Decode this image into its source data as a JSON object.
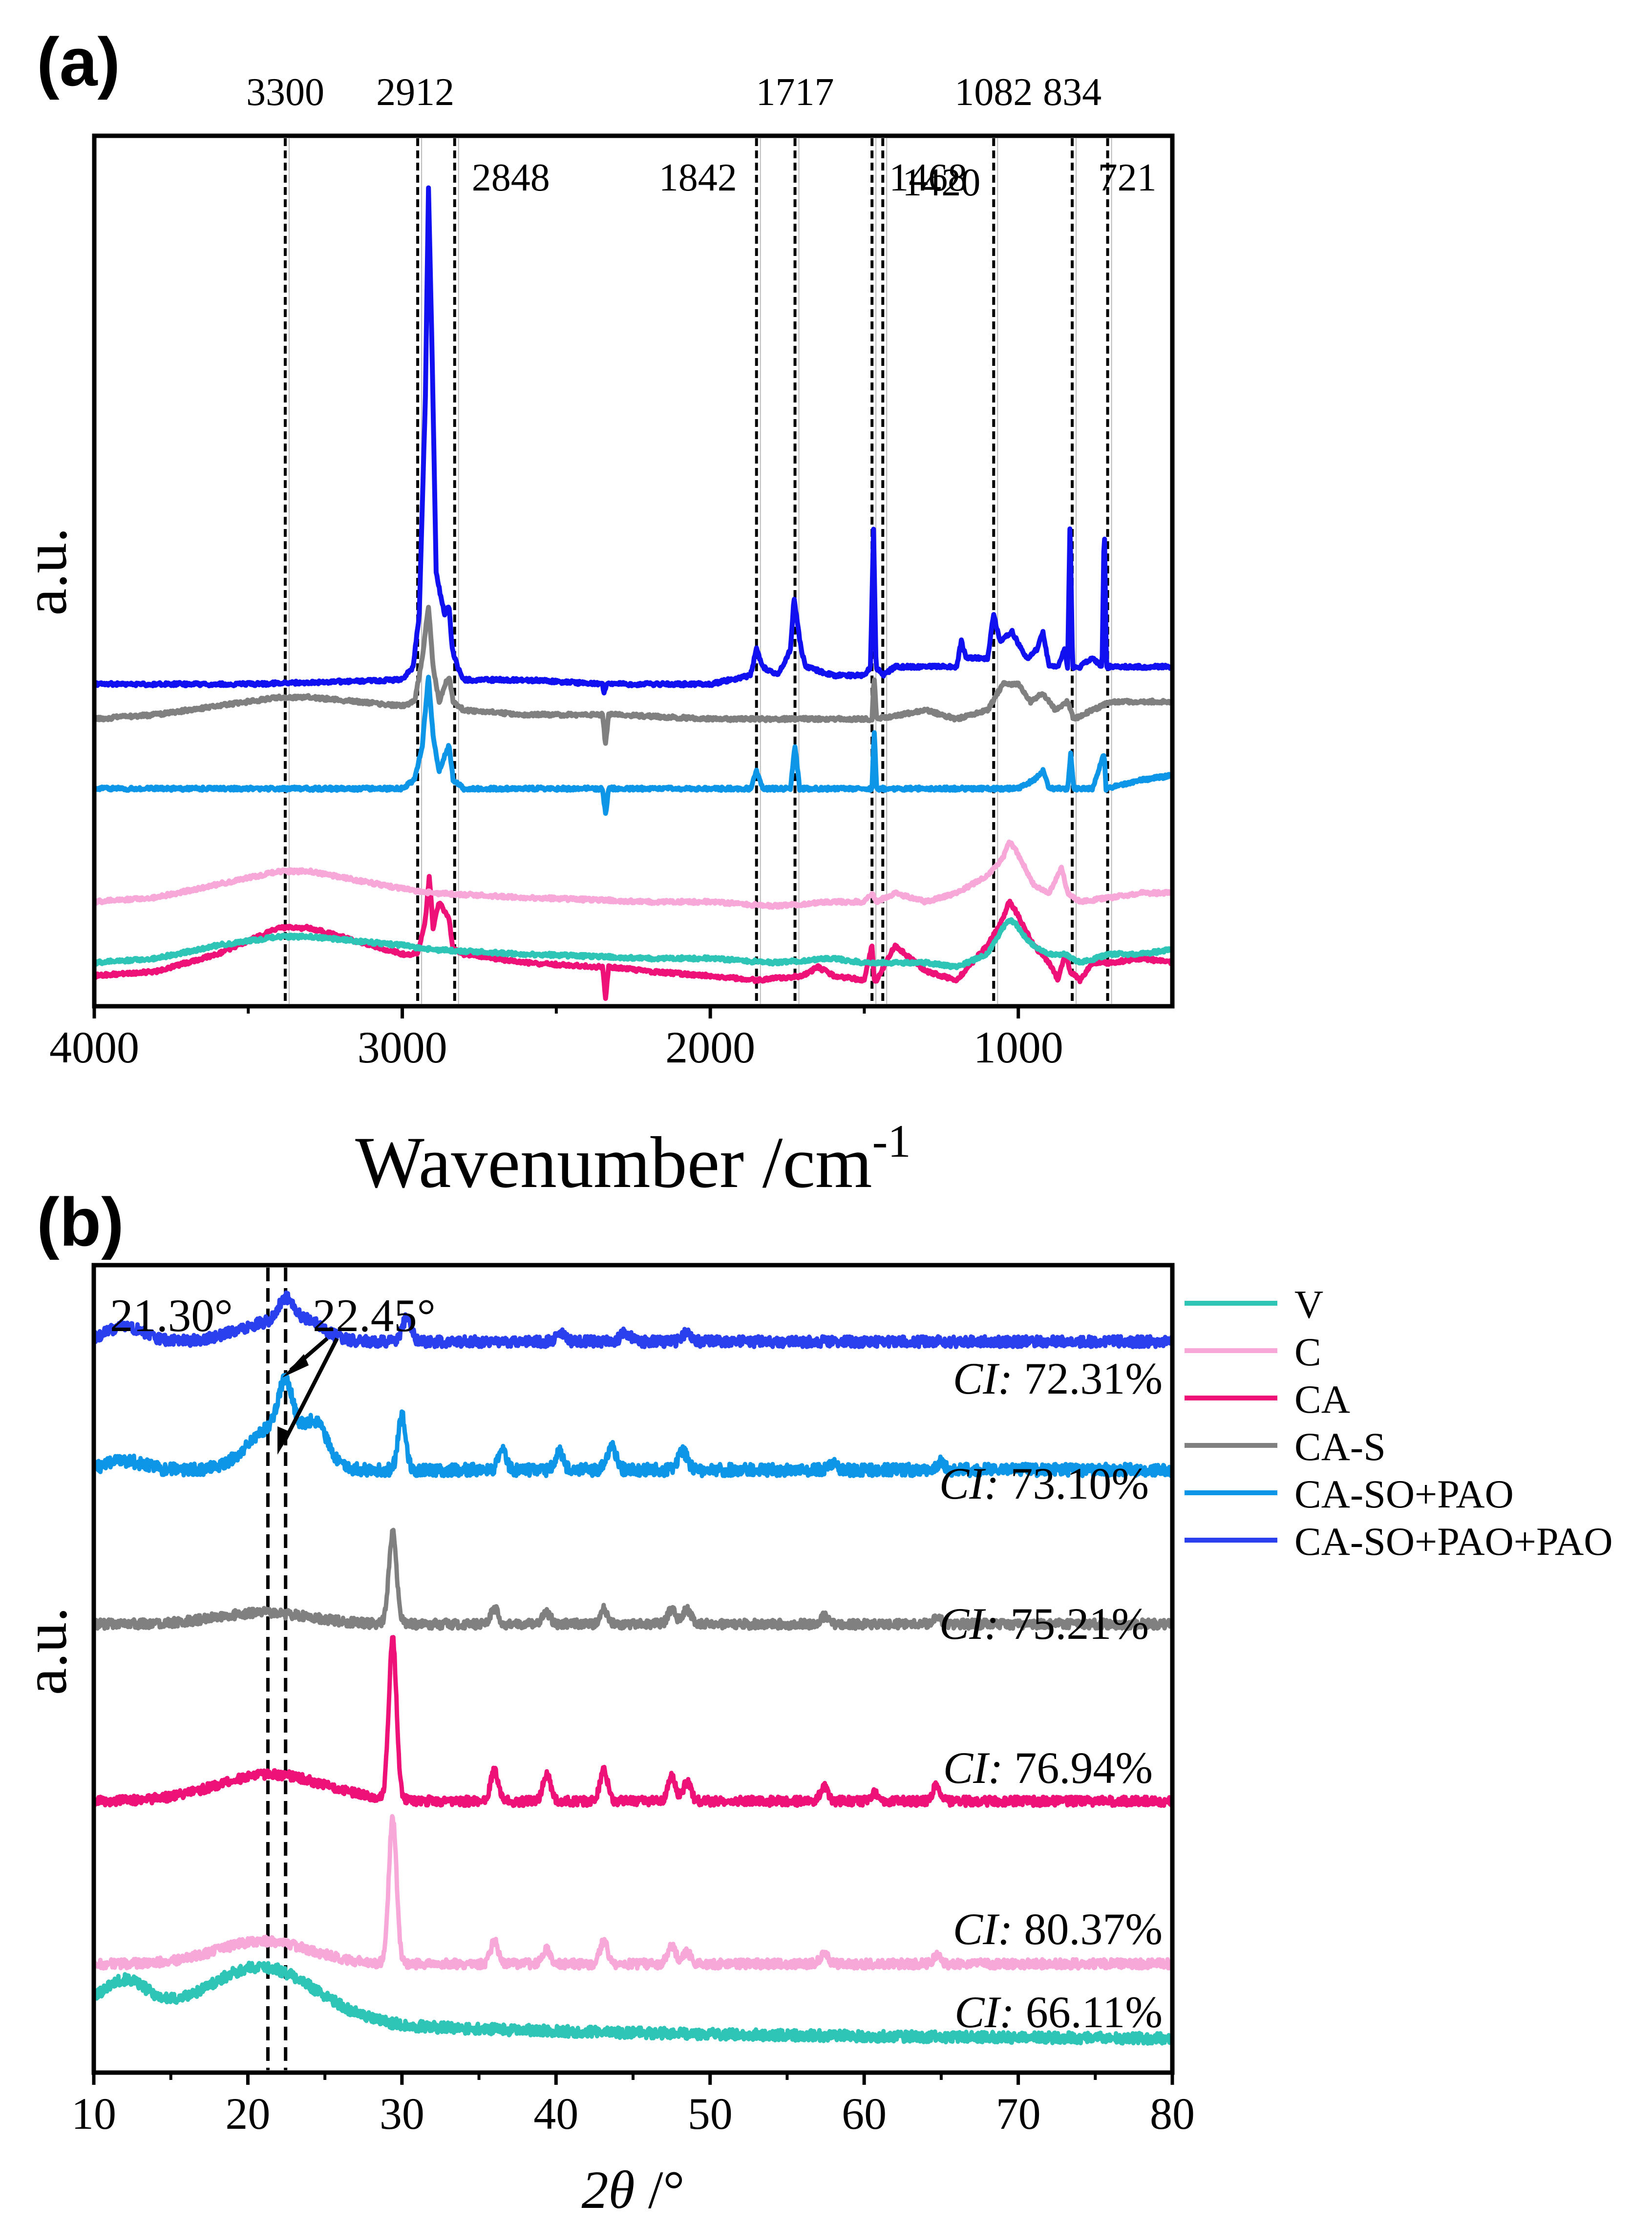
{
  "chart_data": [
    {
      "panel_label": "(a)",
      "type": "line",
      "xlabel": "Wavenumber /cm",
      "xlabel_sup": "-1",
      "ylabel": "a.u.",
      "xlim": [
        4000,
        500
      ],
      "xticks": [
        4000,
        3000,
        2000,
        1000
      ],
      "xtick_labels": [
        "4000",
        "3000",
        "2000",
        "1000"
      ],
      "ylim": [
        0,
        1
      ],
      "grid": false,
      "peak_lines": [
        {
          "x": 3380,
          "label": "3300",
          "row": "top"
        },
        {
          "x": 2950,
          "label": "2912",
          "row": "top"
        },
        {
          "x": 2830,
          "label": "2848",
          "row": "second"
        },
        {
          "x": 1850,
          "label": "1842",
          "row": "second"
        },
        {
          "x": 1725,
          "label": "1717",
          "row": "top"
        },
        {
          "x": 1475,
          "label": "1468",
          "row": "second"
        },
        {
          "x": 1440,
          "label": "1420",
          "row": "third"
        },
        {
          "x": 1080,
          "label": "1082",
          "row": "top"
        },
        {
          "x": 825,
          "label": "834",
          "row": "top"
        },
        {
          "x": 710,
          "label": "721",
          "row": "second"
        }
      ],
      "series": [
        {
          "name": "CA",
          "color": "#EE1177",
          "baseline": 0.035,
          "x": [
            4000,
            3800,
            3600,
            3400,
            3300,
            3150,
            3000,
            2950,
            2925,
            2912,
            2900,
            2880,
            2848,
            2835,
            2800,
            2600,
            2350,
            2340,
            2330,
            2320,
            2200,
            2000,
            1850,
            1700,
            1650,
            1600,
            1500,
            1475,
            1468,
            1460,
            1400,
            1300,
            1200,
            1100,
            1050,
            1030,
            1010,
            980,
            950,
            900,
            870,
            850,
            830,
            800,
            760,
            700,
            600,
            500
          ],
          "y": [
            0.035,
            0.04,
            0.06,
            0.09,
            0.09,
            0.075,
            0.06,
            0.06,
            0.1,
            0.15,
            0.09,
            0.12,
            0.1,
            0.065,
            0.06,
            0.05,
            0.045,
            0.01,
            0.045,
            0.045,
            0.04,
            0.035,
            0.03,
            0.035,
            0.045,
            0.035,
            0.03,
            0.07,
            0.03,
            0.03,
            0.07,
            0.04,
            0.03,
            0.07,
            0.1,
            0.12,
            0.11,
            0.09,
            0.07,
            0.05,
            0.03,
            0.06,
            0.04,
            0.03,
            0.05,
            0.05,
            0.055,
            0.05
          ]
        },
        {
          "name": "V",
          "color": "#2EC4B6",
          "baseline": 0.05,
          "x": [
            4000,
            3800,
            3600,
            3400,
            3300,
            3150,
            3000,
            2900,
            2600,
            2200,
            2000,
            1800,
            1600,
            1500,
            1400,
            1300,
            1200,
            1100,
            1050,
            1030,
            1010,
            980,
            950,
            900,
            850,
            800,
            700,
            600,
            500
          ],
          "y": [
            0.05,
            0.055,
            0.07,
            0.08,
            0.08,
            0.075,
            0.07,
            0.065,
            0.06,
            0.055,
            0.055,
            0.05,
            0.055,
            0.05,
            0.05,
            0.05,
            0.045,
            0.06,
            0.09,
            0.1,
            0.095,
            0.08,
            0.07,
            0.06,
            0.06,
            0.05,
            0.06,
            0.06,
            0.065
          ]
        },
        {
          "name": "C",
          "color": "#F7A8D8",
          "baseline": 0.12,
          "x": [
            4000,
            3800,
            3600,
            3400,
            3300,
            3150,
            3000,
            2900,
            2600,
            2200,
            2000,
            1800,
            1600,
            1500,
            1475,
            1460,
            1400,
            1300,
            1200,
            1100,
            1050,
            1030,
            1010,
            980,
            950,
            900,
            860,
            840,
            800,
            700,
            600,
            500
          ],
          "y": [
            0.12,
            0.125,
            0.14,
            0.155,
            0.155,
            0.145,
            0.135,
            0.13,
            0.125,
            0.12,
            0.12,
            0.115,
            0.12,
            0.12,
            0.13,
            0.12,
            0.13,
            0.12,
            0.13,
            0.15,
            0.17,
            0.19,
            0.18,
            0.16,
            0.14,
            0.13,
            0.16,
            0.13,
            0.12,
            0.125,
            0.13,
            0.13
          ]
        },
        {
          "name": "CA-SO+PAO",
          "color": "#0D96E8",
          "baseline": 0.25,
          "x": [
            4000,
            3500,
            3000,
            2960,
            2935,
            2915,
            2900,
            2880,
            2860,
            2848,
            2835,
            2800,
            2600,
            2350,
            2340,
            2330,
            2320,
            2000,
            1870,
            1850,
            1830,
            1740,
            1725,
            1710,
            1500,
            1475,
            1468,
            1460,
            1300,
            1100,
            1000,
            950,
            920,
            900,
            840,
            830,
            820,
            760,
            721,
            715,
            600,
            500
          ],
          "y": [
            0.25,
            0.25,
            0.25,
            0.26,
            0.3,
            0.38,
            0.31,
            0.27,
            0.29,
            0.3,
            0.26,
            0.25,
            0.25,
            0.25,
            0.22,
            0.25,
            0.25,
            0.25,
            0.25,
            0.27,
            0.25,
            0.25,
            0.3,
            0.25,
            0.25,
            0.25,
            0.32,
            0.25,
            0.25,
            0.25,
            0.25,
            0.26,
            0.27,
            0.25,
            0.25,
            0.29,
            0.25,
            0.25,
            0.29,
            0.25,
            0.26,
            0.265
          ]
        },
        {
          "name": "CA-S",
          "color": "#808080",
          "baseline": 0.33,
          "x": [
            4000,
            3800,
            3600,
            3400,
            3300,
            3150,
            3000,
            2960,
            2935,
            2915,
            2900,
            2880,
            2860,
            2848,
            2835,
            2800,
            2600,
            2350,
            2340,
            2330,
            2320,
            2000,
            1800,
            1600,
            1475,
            1468,
            1460,
            1300,
            1200,
            1100,
            1050,
            1000,
            960,
            920,
            880,
            840,
            820,
            760,
            700,
            600,
            500
          ],
          "y": [
            0.33,
            0.335,
            0.345,
            0.355,
            0.355,
            0.35,
            0.345,
            0.35,
            0.4,
            0.46,
            0.39,
            0.35,
            0.37,
            0.38,
            0.35,
            0.34,
            0.335,
            0.335,
            0.3,
            0.335,
            0.335,
            0.33,
            0.33,
            0.33,
            0.33,
            0.38,
            0.33,
            0.34,
            0.33,
            0.34,
            0.37,
            0.37,
            0.35,
            0.36,
            0.34,
            0.35,
            0.33,
            0.34,
            0.35,
            0.35,
            0.35
          ]
        },
        {
          "name": "CA-SO+PAO+PAO",
          "color": "#1010F0",
          "baseline": 0.37,
          "x": [
            4000,
            3500,
            3000,
            2965,
            2945,
            2925,
            2915,
            2905,
            2890,
            2875,
            2862,
            2848,
            2838,
            2820,
            2800,
            2600,
            2350,
            2345,
            2335,
            2200,
            2000,
            1870,
            1850,
            1830,
            1780,
            1740,
            1728,
            1717,
            1705,
            1690,
            1600,
            1500,
            1480,
            1470,
            1462,
            1440,
            1400,
            1350,
            1300,
            1200,
            1185,
            1170,
            1150,
            1100,
            1080,
            1060,
            1020,
            990,
            970,
            940,
            920,
            900,
            870,
            850,
            840,
            832,
            824,
            800,
            760,
            728,
            721,
            714,
            690,
            650,
            600,
            550,
            500
          ],
          "y": [
            0.37,
            0.37,
            0.375,
            0.39,
            0.45,
            0.7,
            0.94,
            0.78,
            0.5,
            0.47,
            0.45,
            0.46,
            0.41,
            0.39,
            0.375,
            0.375,
            0.37,
            0.36,
            0.37,
            0.37,
            0.37,
            0.38,
            0.41,
            0.39,
            0.38,
            0.41,
            0.47,
            0.44,
            0.41,
            0.39,
            0.38,
            0.38,
            0.39,
            0.55,
            0.39,
            0.38,
            0.39,
            0.39,
            0.39,
            0.39,
            0.42,
            0.4,
            0.4,
            0.4,
            0.45,
            0.42,
            0.43,
            0.41,
            0.4,
            0.41,
            0.43,
            0.39,
            0.39,
            0.41,
            0.39,
            0.56,
            0.39,
            0.39,
            0.4,
            0.39,
            0.56,
            0.39,
            0.39,
            0.39,
            0.39,
            0.39,
            0.39
          ]
        }
      ]
    },
    {
      "panel_label": "(b)",
      "type": "line",
      "xlabel_italic": "2θ",
      "xlabel_rest": " /°",
      "ylabel": "a.u.",
      "xlim": [
        10,
        80
      ],
      "xticks": [
        10,
        20,
        30,
        40,
        50,
        60,
        70,
        80
      ],
      "xtick_labels": [
        "10",
        "20",
        "30",
        "40",
        "50",
        "60",
        "70",
        "80"
      ],
      "ylim": [
        0,
        1
      ],
      "grid": false,
      "legend_position": "right, outside",
      "ref_lines": [
        {
          "x": 21.3,
          "label": "21.30°"
        },
        {
          "x": 22.45,
          "label": "22.45°"
        }
      ],
      "series": [
        {
          "name": "V",
          "color": "#2EC4B6",
          "ci_prefix": "CI:",
          "ci_value": "66.11%",
          "peaks": [
            [
              12,
              0.04,
              1.5
            ],
            [
              21,
              0.07,
              3.5
            ]
          ],
          "base": 0.02,
          "decay": 0.04,
          "noise": 0.007,
          "offset": 0.0
        },
        {
          "name": "C",
          "color": "#F7A8D8",
          "ci_prefix": "CI:",
          "ci_value": "80.37%",
          "peaks": [
            [
              21,
              0.03,
              3
            ],
            [
              29.4,
              0.19,
              0.25
            ],
            [
              36,
              0.03,
              0.25
            ],
            [
              39.4,
              0.02,
              0.25
            ],
            [
              43.1,
              0.03,
              0.25
            ],
            [
              47.5,
              0.025,
              0.25
            ],
            [
              48.5,
              0.015,
              0.25
            ],
            [
              57.4,
              0.015,
              0.25
            ],
            [
              64.7,
              0.01,
              0.25
            ]
          ],
          "base": 0.0,
          "decay": 0.0,
          "noise": 0.006,
          "offset": 0.12
        },
        {
          "name": "CA",
          "color": "#EE1177",
          "ci_prefix": "CI:",
          "ci_value": "76.94%",
          "peaks": [
            [
              21.5,
              0.035,
              3.5
            ],
            [
              29.4,
              0.21,
              0.25
            ],
            [
              36,
              0.04,
              0.25
            ],
            [
              39.4,
              0.035,
              0.25
            ],
            [
              43.1,
              0.04,
              0.25
            ],
            [
              47.5,
              0.035,
              0.25
            ],
            [
              48.5,
              0.025,
              0.25
            ],
            [
              57.4,
              0.02,
              0.25
            ],
            [
              60.7,
              0.01,
              0.25
            ],
            [
              64.7,
              0.02,
              0.25
            ]
          ],
          "base": 0.0,
          "decay": 0.0,
          "noise": 0.006,
          "offset": 0.333
        },
        {
          "name": "CA-S",
          "color": "#808080",
          "ci_prefix": "CI:",
          "ci_value": "75.21%",
          "peaks": [
            [
              21,
              0.015,
              3
            ],
            [
              29.4,
              0.12,
              0.25
            ],
            [
              36,
              0.02,
              0.25
            ],
            [
              39.4,
              0.015,
              0.25
            ],
            [
              43.1,
              0.02,
              0.25
            ],
            [
              47.5,
              0.02,
              0.25
            ],
            [
              48.5,
              0.02,
              0.25
            ],
            [
              57.4,
              0.01,
              0.25
            ],
            [
              64.7,
              0.01,
              0.25
            ]
          ],
          "base": 0.0,
          "decay": 0.0,
          "noise": 0.006,
          "offset": 0.565
        },
        {
          "name": "CA-SO+PAO",
          "color": "#0D96E8",
          "ci_prefix": "CI:",
          "ci_value": "73.10%",
          "peaks": [
            [
              12,
              0.012,
              1.2
            ],
            [
              22,
              0.06,
              1.8
            ],
            [
              22.45,
              0.06,
              0.45
            ],
            [
              24.5,
              0.04,
              0.7
            ],
            [
              30,
              0.07,
              0.25
            ],
            [
              36.5,
              0.03,
              0.25
            ],
            [
              40.2,
              0.025,
              0.25
            ],
            [
              43.6,
              0.03,
              0.3
            ],
            [
              48.2,
              0.025,
              0.3
            ],
            [
              58,
              0.01,
              0.25
            ],
            [
              65,
              0.01,
              0.25
            ]
          ],
          "base": 0.0,
          "decay": 0.0,
          "noise": 0.008,
          "offset": 0.767
        },
        {
          "name": "CA-SO+PAO+PAO",
          "color": "#2A3FEE",
          "ci_prefix": "CI:",
          "ci_value": "72.31%",
          "peaks": [
            [
              12,
              0.02,
              1.2
            ],
            [
              21.5,
              0.025,
              2.2
            ],
            [
              22.45,
              0.03,
              0.5
            ],
            [
              24,
              0.015,
              1
            ],
            [
              30.3,
              0.03,
              0.3
            ],
            [
              40.3,
              0.012,
              0.3
            ],
            [
              44.5,
              0.012,
              0.3
            ],
            [
              48.5,
              0.012,
              0.3
            ]
          ],
          "base": 0.0,
          "decay": 0.0,
          "noise": 0.007,
          "offset": 0.935
        }
      ]
    }
  ]
}
